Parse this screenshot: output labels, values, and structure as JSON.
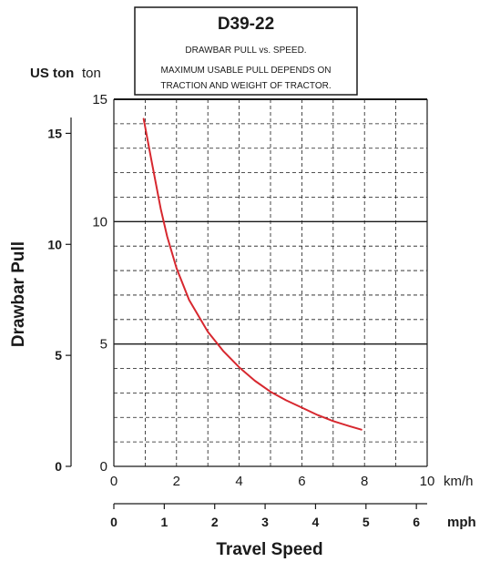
{
  "chart_data": {
    "type": "line",
    "title": "D39-22",
    "subtitle": "DRAWBAR PULL vs. SPEED.",
    "note_line1": "MAXIMUM USABLE PULL DEPENDS ON",
    "note_line2": "TRACTION AND WEIGHT OF TRACTOR.",
    "ylabel": "Drawbar Pull",
    "xlabel": "Travel Speed",
    "y_unit_primary": "ton",
    "y_unit_secondary": "US ton",
    "x_unit_primary": "km/h",
    "x_unit_secondary": "mph",
    "xlim": [
      0,
      10
    ],
    "ylim": [
      0,
      15
    ],
    "x_ticks": [
      "0",
      "2",
      "4",
      "6",
      "8",
      "10"
    ],
    "y_ticks": [
      "0",
      "5",
      "10",
      "15"
    ],
    "mph_ticks": [
      "0",
      "1",
      "2",
      "3",
      "4",
      "5",
      "6"
    ],
    "us_ton_ticks": [
      "0",
      "5",
      "10",
      "15"
    ],
    "grid": true,
    "series": [
      {
        "color": "#d7282f",
        "x": [
          0.95,
          1.2,
          1.5,
          1.7,
          2.0,
          2.4,
          3.0,
          3.5,
          4.0,
          4.5,
          5.0,
          5.5,
          6.0,
          6.5,
          7.0,
          7.5,
          7.9
        ],
        "y": [
          14.2,
          12.5,
          10.5,
          9.4,
          8.1,
          6.8,
          5.5,
          4.7,
          4.05,
          3.5,
          3.05,
          2.7,
          2.4,
          2.1,
          1.85,
          1.65,
          1.5
        ]
      }
    ]
  }
}
